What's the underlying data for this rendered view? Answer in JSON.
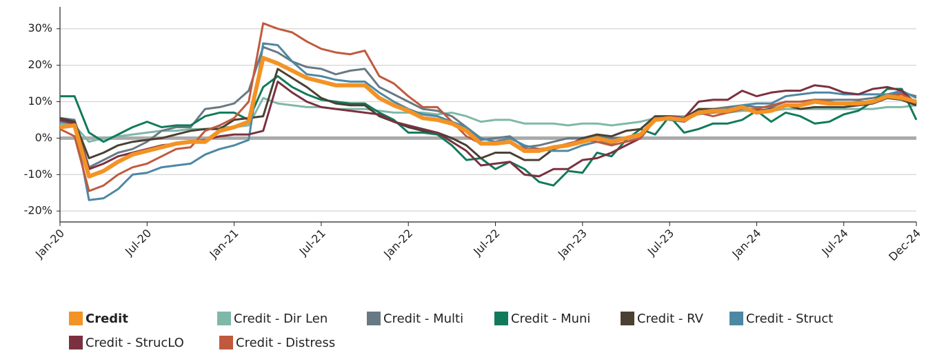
{
  "chart_data": {
    "type": "line",
    "categories": [
      "Jan-20",
      null,
      null,
      null,
      null,
      null,
      "Jul-20",
      null,
      null,
      null,
      null,
      null,
      "Jan-21",
      null,
      null,
      null,
      null,
      null,
      "Jul-21",
      null,
      null,
      null,
      null,
      null,
      "Jan-22",
      null,
      null,
      null,
      null,
      null,
      "Jul-22",
      null,
      null,
      null,
      null,
      null,
      "Jan-23",
      null,
      null,
      null,
      null,
      null,
      "Jul-23",
      null,
      null,
      null,
      null,
      null,
      "Jan-24",
      null,
      null,
      null,
      null,
      null,
      "Jul-24",
      null,
      null,
      null,
      null,
      "Dec-24"
    ],
    "ylim": [
      -23,
      36
    ],
    "yticks": [
      {
        "value": -20,
        "label": "-20%"
      },
      {
        "value": -10,
        "label": "-10%"
      },
      {
        "value": 0,
        "label": "0%"
      },
      {
        "value": 10,
        "label": "10%"
      },
      {
        "value": 20,
        "label": "20%"
      },
      {
        "value": 30,
        "label": "30%"
      }
    ],
    "grid": true,
    "legend": "bottom",
    "series": [
      {
        "name": "Credit - Dir Len",
        "color": "#7fb8a8",
        "values": [
          4,
          3.5,
          -1,
          0,
          0.5,
          1,
          1.5,
          2,
          2,
          2.5,
          2.5,
          3,
          3,
          3.5,
          11,
          9.5,
          9,
          8.5,
          8.5,
          8,
          8,
          8,
          7.5,
          7,
          7,
          7,
          6.5,
          7,
          6,
          4.5,
          5,
          5,
          4,
          4,
          4,
          3.5,
          4,
          4,
          3.5,
          4,
          4.5,
          5.5,
          6,
          6,
          6.5,
          7,
          7,
          7.5,
          7.5,
          7.5,
          8,
          8,
          8,
          8,
          8,
          8,
          8,
          8.5,
          8.5,
          9
        ]
      },
      {
        "name": "Credit - Multi",
        "color": "#687983",
        "values": [
          5.5,
          5,
          -8,
          -6,
          -4,
          -3,
          -1,
          2,
          3,
          3,
          8,
          8.5,
          9.5,
          13,
          25,
          23.5,
          21,
          19.5,
          19,
          17.5,
          18.5,
          19,
          14,
          12,
          10,
          8,
          7.5,
          6,
          3,
          -0.5,
          0,
          0.5,
          -2.5,
          -2,
          -1,
          0,
          0,
          0.5,
          0,
          0,
          1,
          5.5,
          6,
          5.5,
          7.5,
          8,
          8.5,
          9,
          8.5,
          8.5,
          10,
          10,
          10.5,
          10.5,
          10.5,
          10.5,
          11,
          12,
          12.5,
          11.5
        ]
      },
      {
        "name": "Credit - Muni",
        "color": "#127a5b",
        "values": [
          11.5,
          11.5,
          1.5,
          -1,
          1,
          3,
          4.5,
          3,
          3.5,
          3.5,
          6,
          7,
          7,
          5,
          14,
          17,
          14,
          12,
          10.5,
          10,
          9.5,
          9.5,
          7,
          5,
          1.5,
          1.5,
          1,
          -2,
          -6,
          -5.5,
          -8.5,
          -6.5,
          -8.5,
          -12,
          -13,
          -9,
          -9.5,
          -4,
          -5,
          -0.5,
          2.5,
          1,
          6,
          1.5,
          2.5,
          4,
          4,
          5,
          7.5,
          4.5,
          7,
          6,
          4,
          4.5,
          6.5,
          7.5,
          10,
          13.5,
          13.5,
          5
        ]
      },
      {
        "name": "Credit - RV",
        "color": "#4a4033",
        "values": [
          5.5,
          4.5,
          -5.5,
          -4,
          -2,
          -1,
          -0.5,
          0,
          1,
          2,
          2.5,
          2.5,
          5,
          5.5,
          6,
          19,
          16.5,
          14,
          11,
          9.5,
          9,
          9,
          6,
          4.5,
          3,
          2,
          1.5,
          0,
          -2,
          -5.5,
          -4,
          -4,
          -6,
          -6,
          -3,
          -2,
          0,
          1,
          0.5,
          2,
          2.5,
          6,
          6,
          5.5,
          8,
          8,
          7.5,
          8.5,
          7.5,
          8,
          9,
          8,
          8.5,
          8.5,
          8.5,
          9,
          9.5,
          11,
          10.5,
          9
        ]
      },
      {
        "name": "Credit - Struct",
        "color": "#4c88a4",
        "values": [
          4.5,
          4,
          -17,
          -16.5,
          -14,
          -10,
          -9.5,
          -8,
          -7.5,
          -7,
          -4.5,
          -3,
          -2,
          -0.5,
          26,
          25.5,
          21,
          17.5,
          17,
          16,
          15.5,
          15.5,
          12.5,
          10,
          8,
          6.5,
          6,
          4.5,
          3,
          0,
          -1,
          0,
          -2,
          -3,
          -3.5,
          -3.5,
          -2,
          -1,
          -1.5,
          0,
          1,
          5.5,
          5,
          4.5,
          7,
          7,
          8,
          9,
          9.5,
          9.5,
          11.5,
          12,
          12.5,
          12.5,
          12,
          12,
          12,
          12,
          13,
          11
        ]
      },
      {
        "name": "Credit - StrucLO",
        "color": "#7b3040",
        "values": [
          5,
          4,
          -8.5,
          -7,
          -5,
          -4,
          -3,
          -2,
          -1.5,
          -1,
          -0.5,
          0.5,
          1,
          1,
          2,
          15.5,
          12.5,
          10,
          8.5,
          8,
          7.5,
          7,
          6.5,
          4.5,
          3.5,
          2.5,
          1.5,
          -1,
          -3.5,
          -7.5,
          -7,
          -6.5,
          -10,
          -10.5,
          -8.5,
          -8.5,
          -6,
          -5.5,
          -4,
          -2,
          0,
          5,
          6,
          5.5,
          10,
          10.5,
          10.5,
          13,
          11.5,
          12.5,
          13,
          13,
          14.5,
          14,
          12.5,
          12,
          13.5,
          14,
          13,
          9.5
        ]
      },
      {
        "name": "Credit - Distress",
        "color": "#c05a3e",
        "values": [
          2.5,
          0.5,
          -14.5,
          -13,
          -10,
          -8,
          -7,
          -5,
          -3,
          -2.5,
          2,
          3.5,
          5.5,
          10,
          31.5,
          30,
          29,
          26.5,
          24.5,
          23.5,
          23,
          24,
          17,
          15,
          11.5,
          8.5,
          8.5,
          4.5,
          0.5,
          -1.5,
          -1,
          -1,
          -3,
          -3,
          -2.5,
          -1.5,
          -0.5,
          -1,
          -2,
          -1,
          0,
          5.5,
          5.5,
          4.5,
          7,
          6,
          7,
          8,
          8,
          9,
          10,
          10,
          10.5,
          10,
          9.5,
          10,
          10,
          11.5,
          12,
          10
        ]
      },
      {
        "name": "Credit",
        "color": "#f39325",
        "values": [
          3,
          3.5,
          -10.5,
          -9,
          -6.5,
          -4.5,
          -3.5,
          -2.5,
          -1.5,
          -1,
          -1,
          2,
          3,
          4.5,
          22,
          20.5,
          18.5,
          16.5,
          15.5,
          14.5,
          14.5,
          14.5,
          11,
          9,
          7.5,
          5.5,
          5,
          4,
          2,
          -1.5,
          -1.5,
          -1,
          -3.5,
          -3.5,
          -2.5,
          -2,
          -1,
          0,
          -1,
          0,
          1,
          5,
          5.5,
          5,
          7,
          7.5,
          7.5,
          8.5,
          7,
          7.5,
          9,
          9,
          10,
          9.5,
          9.5,
          9.5,
          10,
          11.5,
          11,
          10
        ]
      }
    ]
  }
}
